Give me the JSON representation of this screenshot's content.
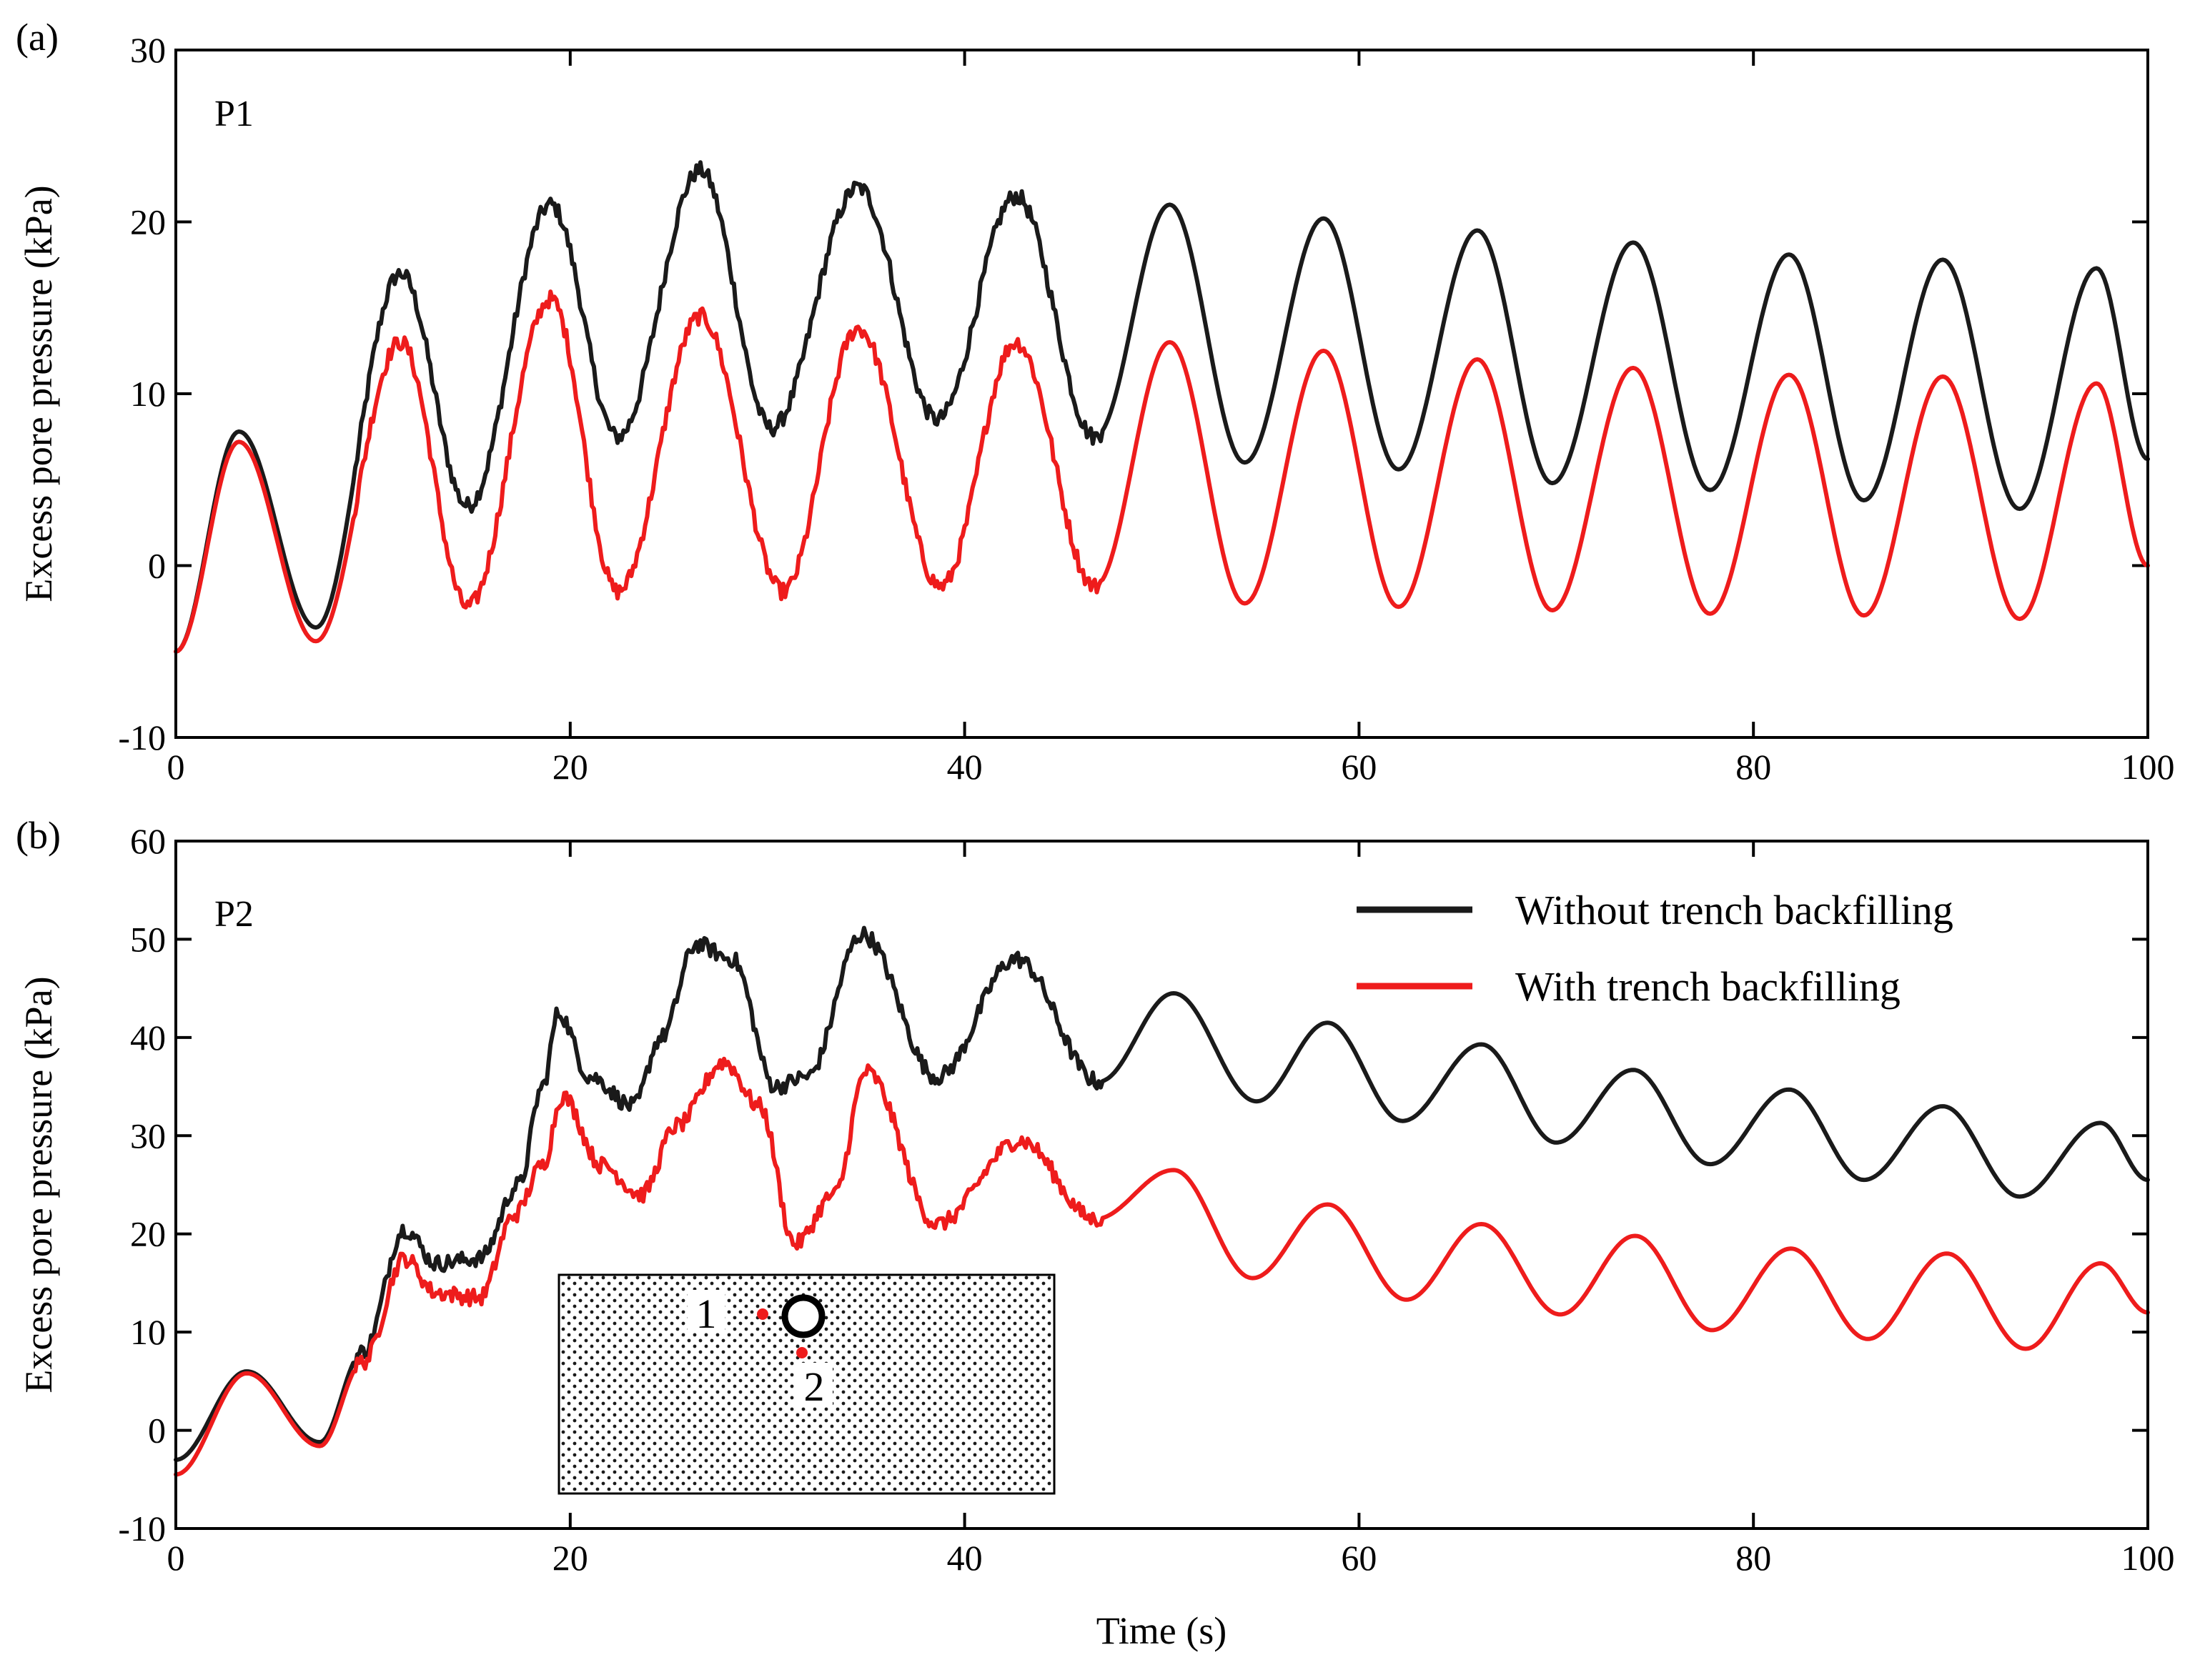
{
  "figure": {
    "xlabel": "Time (s)",
    "ylabel": "Excess pore pressure (kPa)",
    "legend": [
      {
        "label": "Without trench backfilling",
        "color": "#1a1a1a"
      },
      {
        "label": "With trench backfilling",
        "color": "#ee1c1c"
      }
    ],
    "inset": {
      "point1_label": "1",
      "point2_label": "2",
      "point_color": "#ee1c1c"
    }
  },
  "chart_data": [
    {
      "type": "line",
      "panel_tag": "(a)",
      "panel_label": "P1",
      "xlabel": "",
      "ylabel": "Excess pore pressure (kPa)",
      "xlim": [
        0,
        100
      ],
      "ylim": [
        -10,
        30
      ],
      "xticks": [
        0,
        20,
        40,
        60,
        80,
        100
      ],
      "yticks": [
        -10,
        0,
        10,
        20,
        30
      ],
      "legend_position": "none",
      "series": [
        {
          "name": "Without trench backfilling",
          "color": "#1a1a1a",
          "noise_until": 47,
          "points": [
            [
              0,
              -5
            ],
            [
              3.2,
              7.8
            ],
            [
              7.1,
              -3.6
            ],
            [
              11.4,
              17
            ],
            [
              14.8,
              3.5
            ],
            [
              19,
              21
            ],
            [
              22.4,
              7.5
            ],
            [
              26.6,
              23
            ],
            [
              30.2,
              8
            ],
            [
              34.6,
              22
            ],
            [
              38.6,
              8.5
            ],
            [
              42.6,
              21.5
            ],
            [
              46.6,
              7.5
            ],
            [
              50.4,
              21
            ],
            [
              54.2,
              6
            ],
            [
              58.2,
              20.2
            ],
            [
              62,
              5.6
            ],
            [
              66,
              19.5
            ],
            [
              69.8,
              4.8
            ],
            [
              73.9,
              18.8
            ],
            [
              77.8,
              4.4
            ],
            [
              81.8,
              18.1
            ],
            [
              85.6,
              3.8
            ],
            [
              89.6,
              17.8
            ],
            [
              93.5,
              3.3
            ],
            [
              97.4,
              17.3
            ],
            [
              100,
              6.2
            ]
          ]
        },
        {
          "name": "With trench backfilling",
          "color": "#ee1c1c",
          "noise_until": 47,
          "points": [
            [
              0,
              -5
            ],
            [
              3.2,
              7.2
            ],
            [
              7.1,
              -4.4
            ],
            [
              11.4,
              13
            ],
            [
              14.8,
              -2.4
            ],
            [
              19,
              15.5
            ],
            [
              22.4,
              -1.5
            ],
            [
              26.6,
              14.5
            ],
            [
              30.8,
              -1.5
            ],
            [
              34.6,
              13.8
            ],
            [
              38.8,
              -1.2
            ],
            [
              42.6,
              13
            ],
            [
              46.6,
              -1.2
            ],
            [
              50.4,
              13
            ],
            [
              54.2,
              -2.2
            ],
            [
              58.2,
              12.5
            ],
            [
              62,
              -2.4
            ],
            [
              66,
              12
            ],
            [
              69.8,
              -2.6
            ],
            [
              73.9,
              11.5
            ],
            [
              77.8,
              -2.8
            ],
            [
              81.8,
              11.1
            ],
            [
              85.6,
              -2.9
            ],
            [
              89.6,
              11
            ],
            [
              93.5,
              -3.1
            ],
            [
              97.4,
              10.6
            ],
            [
              100,
              0
            ]
          ]
        }
      ]
    },
    {
      "type": "line",
      "panel_tag": "(b)",
      "panel_label": "P2",
      "xlabel": "Time (s)",
      "ylabel": "Excess pore pressure (kPa)",
      "xlim": [
        0,
        100
      ],
      "ylim": [
        -10,
        60
      ],
      "xticks": [
        0,
        20,
        40,
        60,
        80,
        100
      ],
      "yticks": [
        -10,
        0,
        10,
        20,
        30,
        40,
        50,
        60
      ],
      "legend_position": "top-right",
      "series": [
        {
          "name": "Without trench backfilling",
          "color": "#1a1a1a",
          "noise_until": 47,
          "points": [
            [
              0,
              -3
            ],
            [
              3.6,
              6
            ],
            [
              7.3,
              -1.2
            ],
            [
              9.5,
              8
            ],
            [
              11.6,
              20.5
            ],
            [
              13.2,
              17
            ],
            [
              15.4,
              17.5
            ],
            [
              17.4,
              25
            ],
            [
              18.6,
              35
            ],
            [
              19.4,
              42.5
            ],
            [
              21,
              36
            ],
            [
              23.2,
              33
            ],
            [
              24.6,
              40
            ],
            [
              26.4,
              49.5
            ],
            [
              28.2,
              48
            ],
            [
              30.4,
              35
            ],
            [
              32,
              36
            ],
            [
              34.8,
              50.5
            ],
            [
              38.6,
              36
            ],
            [
              42.6,
              48
            ],
            [
              46.8,
              35.5
            ],
            [
              50.6,
              44.5
            ],
            [
              54.8,
              33.5
            ],
            [
              58.4,
              41.5
            ],
            [
              62.2,
              31.5
            ],
            [
              66.2,
              39.3
            ],
            [
              70,
              29.3
            ],
            [
              73.9,
              36.7
            ],
            [
              77.8,
              27.1
            ],
            [
              81.8,
              34.7
            ],
            [
              85.6,
              25.5
            ],
            [
              89.6,
              33
            ],
            [
              93.5,
              23.8
            ],
            [
              97.6,
              31.3
            ],
            [
              100,
              25.5
            ]
          ]
        },
        {
          "name": "With trench backfilling",
          "color": "#ee1c1c",
          "noise_until": 47,
          "points": [
            [
              0,
              -4.5
            ],
            [
              3.6,
              5.8
            ],
            [
              7.3,
              -1.6
            ],
            [
              9.5,
              7
            ],
            [
              11.6,
              17.5
            ],
            [
              13.2,
              14
            ],
            [
              15.4,
              13.5
            ],
            [
              17.2,
              22
            ],
            [
              18.6,
              27
            ],
            [
              19.6,
              34
            ],
            [
              21.6,
              27
            ],
            [
              23.6,
              24
            ],
            [
              25.4,
              31
            ],
            [
              27.8,
              37.5
            ],
            [
              29.6,
              33
            ],
            [
              31.4,
              19
            ],
            [
              33.4,
              24
            ],
            [
              35,
              36.5
            ],
            [
              38.6,
              21
            ],
            [
              42.8,
              29.5
            ],
            [
              46.6,
              21.5
            ],
            [
              50.6,
              26.5
            ],
            [
              54.6,
              15.5
            ],
            [
              58.4,
              23
            ],
            [
              62.4,
              13.3
            ],
            [
              66.2,
              21
            ],
            [
              70.2,
              11.8
            ],
            [
              74,
              19.8
            ],
            [
              77.9,
              10.2
            ],
            [
              81.9,
              18.5
            ],
            [
              85.8,
              9.3
            ],
            [
              89.8,
              18
            ],
            [
              93.8,
              8.3
            ],
            [
              97.6,
              17
            ],
            [
              100,
              12
            ]
          ]
        }
      ]
    }
  ]
}
